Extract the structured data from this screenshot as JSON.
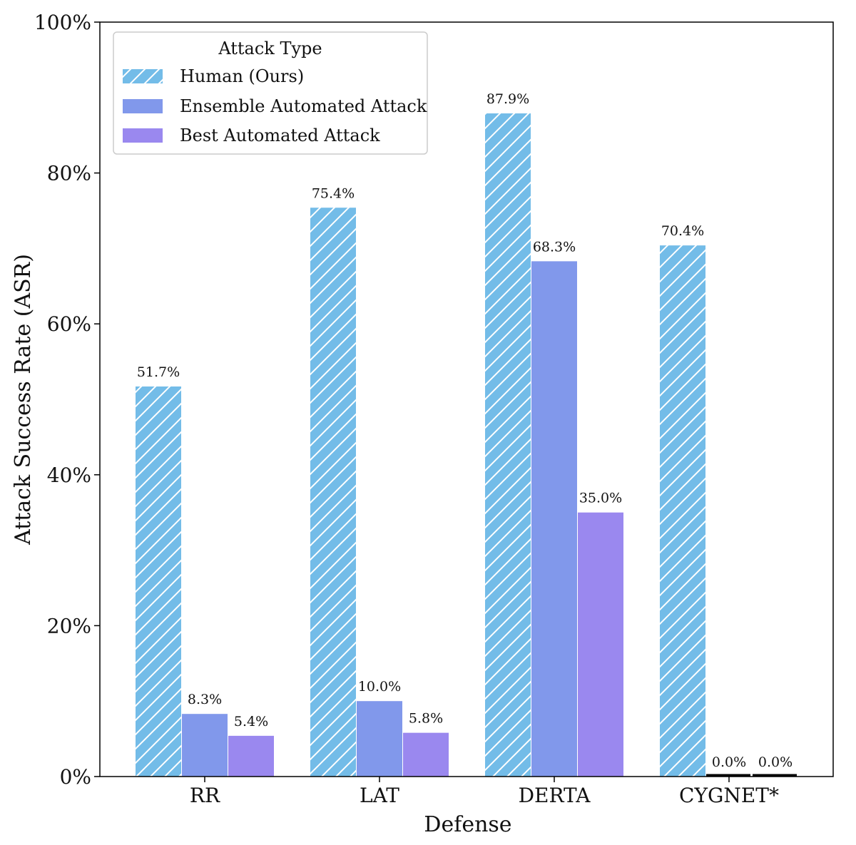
{
  "chart_data": {
    "type": "bar",
    "categories": [
      "RR",
      "LAT",
      "DERTA",
      "CYGNET*"
    ],
    "series": [
      {
        "name": "Human (Ours)",
        "values": [
          51.7,
          75.4,
          87.9,
          70.4
        ],
        "labels": [
          "51.7%",
          "75.4%",
          "87.9%",
          "70.4%"
        ],
        "color": "#73bce8",
        "hatch": true
      },
      {
        "name": "Ensemble Automated Attack",
        "values": [
          8.3,
          10.0,
          68.3,
          0.0
        ],
        "labels": [
          "8.3%",
          "10.0%",
          "68.3%",
          "0.0%"
        ],
        "color": "#8198eb",
        "hatch": false
      },
      {
        "name": "Best Automated Attack",
        "values": [
          5.4,
          5.8,
          35.0,
          0.0
        ],
        "labels": [
          "5.4%",
          "5.8%",
          "35.0%",
          "0.0%"
        ],
        "color": "#9a88ef",
        "hatch": false
      }
    ],
    "title": "",
    "xlabel": "Defense",
    "ylabel": "Attack Success Rate (ASR)",
    "ylim": [
      0,
      100
    ],
    "yticks": [
      0,
      20,
      40,
      60,
      80,
      100
    ],
    "ytick_labels": [
      "0%",
      "20%",
      "40%",
      "60%",
      "80%",
      "100%"
    ],
    "grid": false,
    "legend": {
      "title": "Attack Type",
      "placement": "top-left"
    }
  }
}
